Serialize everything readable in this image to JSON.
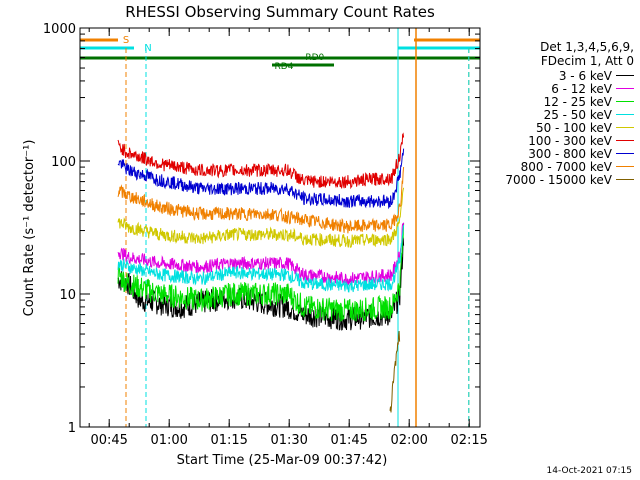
{
  "chart_data": {
    "type": "line",
    "title": "RHESSI Observing Summary Count Rates",
    "xlabel": "Start Time (25-Mar-09 00:37:42)",
    "ylabel": "Count Rate (s⁻¹ detector⁻¹)",
    "yscale": "log",
    "ylim": [
      1,
      1000
    ],
    "xlim_minutes_after_start": [
      0,
      100
    ],
    "x_tick_labels": [
      "00:45",
      "01:00",
      "01:15",
      "01:30",
      "01:45",
      "02:00",
      "02:15"
    ],
    "x_tick_minutes": [
      7.3,
      22.3,
      37.3,
      52.3,
      67.3,
      82.3,
      97.3
    ],
    "y_tick_labels": [
      "1",
      "10",
      "100",
      "1000"
    ],
    "y_tick_values": [
      1,
      10,
      100,
      1000
    ],
    "legend_header": [
      "Det 1,3,4,5,6,9,",
      "FDecim 1, Att 0"
    ],
    "series": [
      {
        "name": "3 - 6 keV",
        "color": "#000000"
      },
      {
        "name": "6 - 12 keV",
        "color": "#e000e0"
      },
      {
        "name": "12 - 25 keV",
        "color": "#00e000"
      },
      {
        "name": "25 - 50 keV",
        "color": "#00e0e0"
      },
      {
        "name": "50 - 100 keV",
        "color": "#d0c800"
      },
      {
        "name": "100 - 300 keV",
        "color": "#e00000"
      },
      {
        "name": "300 - 800 keV",
        "color": "#0000d0"
      },
      {
        "name": "800 - 7000 keV",
        "color": "#f08000"
      },
      {
        "name": "7000 - 15000 keV",
        "color": "#806000"
      }
    ],
    "series_levels": {
      "3 - 6 keV": [
        [
          9.5,
          13
        ],
        [
          12,
          12
        ],
        [
          15,
          9
        ],
        [
          25,
          8
        ],
        [
          38,
          9.5
        ],
        [
          46,
          8.5
        ],
        [
          52,
          8
        ],
        [
          56,
          7
        ],
        [
          67,
          6.5
        ],
        [
          78,
          7
        ],
        [
          80,
          10
        ],
        [
          81,
          30
        ]
      ],
      "6 - 12 keV": [
        [
          9.5,
          21
        ],
        [
          12,
          19
        ],
        [
          20,
          17
        ],
        [
          30,
          16
        ],
        [
          38,
          17
        ],
        [
          48,
          17
        ],
        [
          52,
          17
        ],
        [
          56,
          14
        ],
        [
          67,
          13
        ],
        [
          78,
          14
        ],
        [
          80,
          20
        ],
        [
          81,
          40
        ]
      ],
      "12 - 25 keV": [
        [
          9.5,
          14
        ],
        [
          12,
          12
        ],
        [
          20,
          10
        ],
        [
          30,
          9
        ],
        [
          38,
          10
        ],
        [
          48,
          10
        ],
        [
          52,
          10
        ],
        [
          56,
          8
        ],
        [
          67,
          7.5
        ],
        [
          78,
          8
        ],
        [
          80,
          12
        ],
        [
          81,
          35
        ]
      ],
      "25 - 50 keV": [
        [
          9.5,
          17
        ],
        [
          12,
          16
        ],
        [
          20,
          14
        ],
        [
          30,
          13
        ],
        [
          38,
          14.5
        ],
        [
          48,
          14
        ],
        [
          52,
          14
        ],
        [
          56,
          12
        ],
        [
          67,
          11.5
        ],
        [
          78,
          12
        ],
        [
          80,
          18
        ],
        [
          81,
          40
        ]
      ],
      "50 - 100 keV": [
        [
          9.5,
          35
        ],
        [
          12,
          32
        ],
        [
          20,
          28
        ],
        [
          30,
          26
        ],
        [
          38,
          28
        ],
        [
          48,
          28
        ],
        [
          52,
          28
        ],
        [
          56,
          26
        ],
        [
          67,
          25
        ],
        [
          78,
          26
        ],
        [
          80,
          35
        ],
        [
          81,
          70
        ]
      ],
      "100 - 300 keV": [
        [
          9.5,
          130
        ],
        [
          12,
          115
        ],
        [
          20,
          95
        ],
        [
          30,
          85
        ],
        [
          38,
          85
        ],
        [
          48,
          85
        ],
        [
          52,
          85
        ],
        [
          56,
          70
        ],
        [
          67,
          70
        ],
        [
          78,
          75
        ],
        [
          80,
          110
        ],
        [
          81,
          160
        ]
      ],
      "300 - 800 keV": [
        [
          9.5,
          100
        ],
        [
          12,
          85
        ],
        [
          20,
          72
        ],
        [
          30,
          62
        ],
        [
          38,
          62
        ],
        [
          48,
          62
        ],
        [
          52,
          62
        ],
        [
          56,
          52
        ],
        [
          67,
          50
        ],
        [
          78,
          50
        ],
        [
          80,
          80
        ],
        [
          81,
          130
        ]
      ],
      "800 - 7000 keV": [
        [
          9.5,
          60
        ],
        [
          12,
          55
        ],
        [
          20,
          45
        ],
        [
          30,
          40
        ],
        [
          38,
          40
        ],
        [
          48,
          40
        ],
        [
          52,
          38
        ],
        [
          56,
          36
        ],
        [
          67,
          32
        ],
        [
          78,
          33
        ],
        [
          80,
          45
        ],
        [
          81,
          90
        ]
      ],
      "7000 - 15000 keV": [
        [
          77.5,
          1.2
        ],
        [
          78.5,
          2.5
        ],
        [
          79.5,
          4.5
        ],
        [
          80,
          5
        ]
      ]
    },
    "flag_labels": {
      "saa": "S",
      "night": "N",
      "rd0": "RD0",
      "rd4": "RD4"
    },
    "grid": false,
    "legend_placement": "top-right"
  },
  "footer_timestamp": "14-Oct-2021 07:15"
}
